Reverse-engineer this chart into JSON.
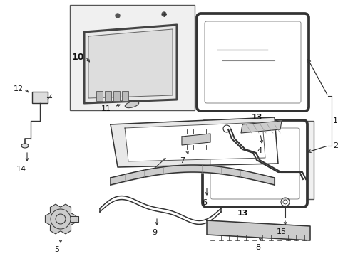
{
  "bg_color": "#ffffff",
  "fig_width": 4.89,
  "fig_height": 3.6,
  "dpi": 100,
  "lc": "#333333",
  "lc_dark": "#111111"
}
